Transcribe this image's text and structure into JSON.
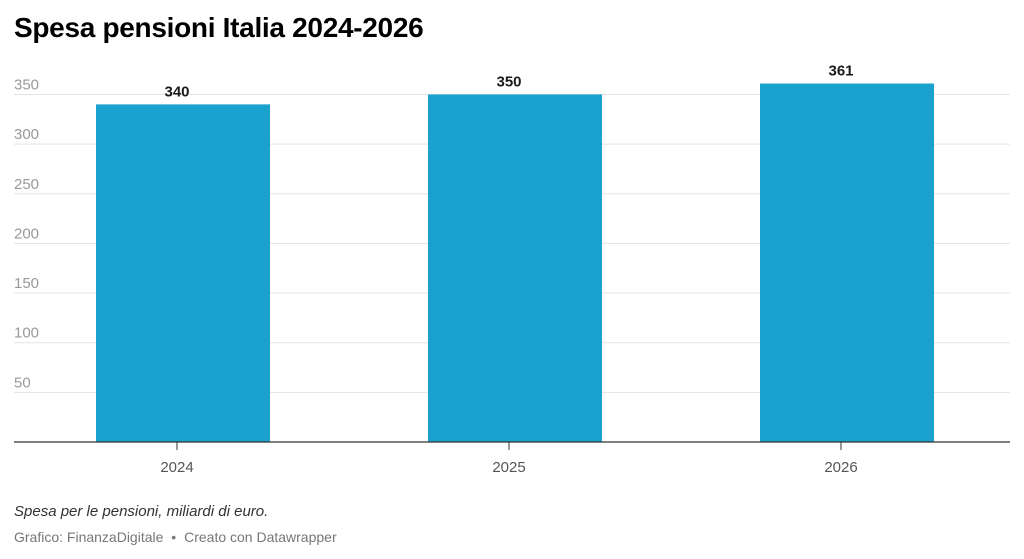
{
  "header": {
    "title": "Spesa pensioni Italia 2024-2026"
  },
  "chart_data": {
    "type": "bar",
    "categories": [
      "2024",
      "2025",
      "2026"
    ],
    "values": [
      340,
      350,
      361
    ],
    "data_labels": [
      "340",
      "350",
      "361"
    ],
    "title": "Spesa pensioni Italia 2024-2026",
    "xlabel": "",
    "ylabel": "",
    "ylim": [
      0,
      360
    ],
    "yticks": [
      50,
      100,
      150,
      200,
      250,
      300,
      350
    ],
    "ytick_labels": [
      "50",
      "100",
      "150",
      "200",
      "250",
      "300",
      "350"
    ],
    "grid": true,
    "bar_color": "#1ba1ce"
  },
  "footer": {
    "notes": "Spesa per le pensioni, miliardi di euro.",
    "credit_prefix": "Grafico: ",
    "credit_source": "FinanzaDigitale",
    "separator": "•",
    "credit_tool": "Creato con Datawrapper"
  }
}
